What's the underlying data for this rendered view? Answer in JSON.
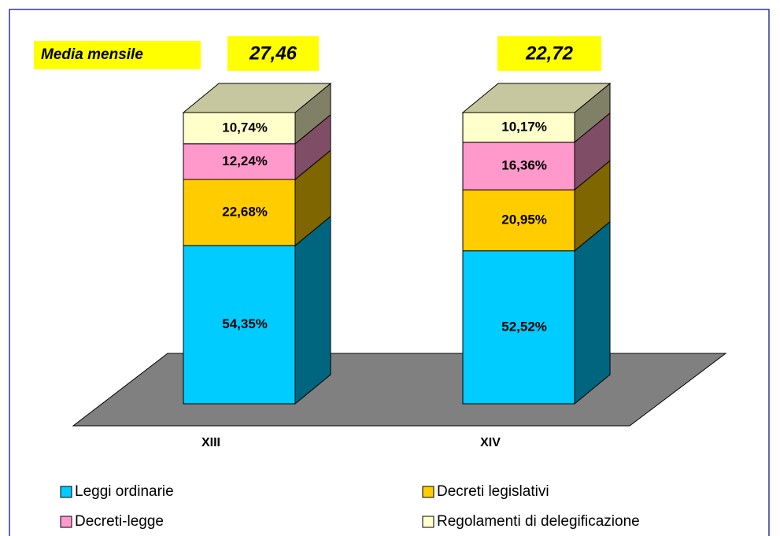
{
  "chart_data": {
    "type": "bar3d_stacked",
    "categories": [
      "XIII",
      "XIV"
    ],
    "series": [
      {
        "name": "Leggi ordinarie",
        "color": "#00ccff",
        "values": [
          54.35,
          52.52
        ],
        "value_labels": [
          "54,35%",
          "52,52%"
        ]
      },
      {
        "name": "Decreti legislativi",
        "color": "#ffcc00",
        "values": [
          22.68,
          20.95
        ],
        "value_labels": [
          "22,68%",
          "20,95%"
        ]
      },
      {
        "name": "Decreti-legge",
        "color": "#ff99cc",
        "values": [
          12.24,
          16.36
        ],
        "value_labels": [
          "12,24%",
          "16,36%"
        ]
      },
      {
        "name": "Regolamenti di delegificazione",
        "color": "#ffffcc",
        "values": [
          10.74,
          10.17
        ],
        "value_labels": [
          "10,74%",
          "10,17%"
        ]
      }
    ],
    "monthly_average": {
      "label": "Media mensile",
      "values": [
        27.46,
        22.72
      ],
      "value_labels": [
        "27,46",
        "22,72"
      ]
    },
    "legend": "bottom"
  }
}
